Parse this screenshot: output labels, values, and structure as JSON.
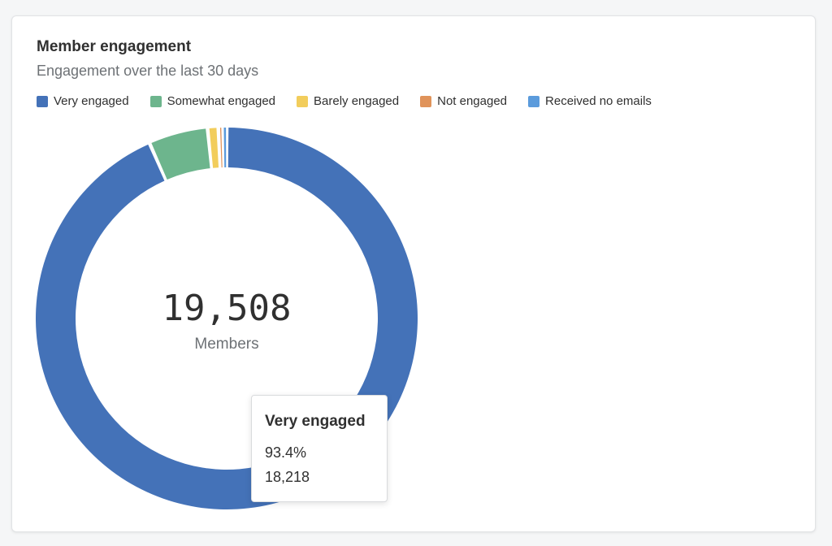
{
  "card": {
    "title": "Member engagement",
    "subtitle": "Engagement over the last 30 days"
  },
  "chart_data": {
    "type": "pie",
    "donut": true,
    "title": "Member engagement",
    "subtitle": "Engagement over the last 30 days",
    "legend_position": "top-left",
    "categories": [
      "Very engaged",
      "Somewhat engaged",
      "Barely engaged",
      "Not engaged",
      "Received no emails"
    ],
    "colors": [
      "#4472b8",
      "#6db58d",
      "#f2cd5c",
      "#e0935a",
      "#5b9bdc"
    ],
    "values": [
      93.4,
      5.0,
      0.9,
      0.4,
      0.3
    ],
    "legend": [
      {
        "label": "Very engaged",
        "color": "#4472b8"
      },
      {
        "label": "Somewhat engaged",
        "color": "#6db58d"
      },
      {
        "label": "Barely engaged",
        "color": "#f2cd5c"
      },
      {
        "label": "Not engaged",
        "color": "#e0935a"
      },
      {
        "label": "Received no emails",
        "color": "#5b9bdc"
      }
    ],
    "center": {
      "value": "19,508",
      "label": "Members"
    },
    "tooltip": {
      "title": "Very engaged",
      "percent": "93.4%",
      "count": "18,218"
    }
  }
}
